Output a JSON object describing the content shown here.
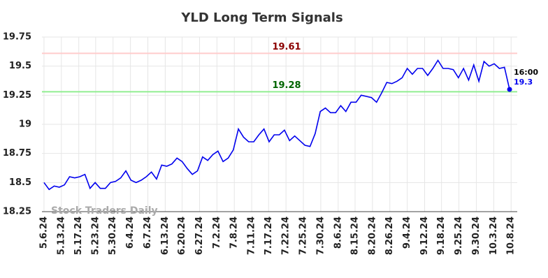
{
  "chart_data": {
    "type": "line",
    "title": "YLD Long Term Signals",
    "watermark": "Stock Traders Daily",
    "series": [
      {
        "name": "YLD",
        "color": "#0000ee",
        "values": [
          18.5,
          18.44,
          18.47,
          18.46,
          18.48,
          18.55,
          18.54,
          18.55,
          18.57,
          18.45,
          18.5,
          18.45,
          18.45,
          18.5,
          18.51,
          18.54,
          18.6,
          18.52,
          18.5,
          18.52,
          18.55,
          18.59,
          18.53,
          18.65,
          18.64,
          18.66,
          18.71,
          18.68,
          18.62,
          18.57,
          18.6,
          18.72,
          18.69,
          18.74,
          18.77,
          18.68,
          18.71,
          18.78,
          18.96,
          18.89,
          18.85,
          18.85,
          18.91,
          18.96,
          18.85,
          18.91,
          18.91,
          18.95,
          18.86,
          18.9,
          18.86,
          18.82,
          18.81,
          18.92,
          19.11,
          19.14,
          19.1,
          19.1,
          19.16,
          19.11,
          19.19,
          19.19,
          19.25,
          19.24,
          19.23,
          19.19,
          19.27,
          19.36,
          19.35,
          19.37,
          19.4,
          19.48,
          19.43,
          19.48,
          19.48,
          19.42,
          19.48,
          19.55,
          19.48,
          19.48,
          19.47,
          19.4,
          19.48,
          19.38,
          19.51,
          19.37,
          19.54,
          19.5,
          19.52,
          19.48,
          19.49,
          19.3
        ]
      }
    ],
    "xlim": [
      -0.4,
      92.5
    ],
    "xticks": [
      {
        "value": 0,
        "label": "5.6.24"
      },
      {
        "value": 3.4,
        "label": "5.13.24"
      },
      {
        "value": 6.8,
        "label": "5.17.24"
      },
      {
        "value": 10.1,
        "label": "5.23.24"
      },
      {
        "value": 13.5,
        "label": "5.30.24"
      },
      {
        "value": 16.9,
        "label": "6.4.24"
      },
      {
        "value": 20.3,
        "label": "6.7.24"
      },
      {
        "value": 23.7,
        "label": "6.13.24"
      },
      {
        "value": 27,
        "label": "6.20.24"
      },
      {
        "value": 30.4,
        "label": "6.27.24"
      },
      {
        "value": 33.8,
        "label": "7.2.24"
      },
      {
        "value": 37.2,
        "label": "7.8.24"
      },
      {
        "value": 40.6,
        "label": "7.11.24"
      },
      {
        "value": 43.9,
        "label": "7.17.24"
      },
      {
        "value": 47.3,
        "label": "7.22.24"
      },
      {
        "value": 50.7,
        "label": "7.25.24"
      },
      {
        "value": 54.1,
        "label": "7.30.24"
      },
      {
        "value": 57.5,
        "label": "8.6.24"
      },
      {
        "value": 60.8,
        "label": "8.15.24"
      },
      {
        "value": 64.2,
        "label": "8.20.24"
      },
      {
        "value": 67.6,
        "label": "8.26.24"
      },
      {
        "value": 71,
        "label": "9.4.24"
      },
      {
        "value": 74.4,
        "label": "9.12.24"
      },
      {
        "value": 77.7,
        "label": "9.18.24"
      },
      {
        "value": 81.1,
        "label": "9.25.24"
      },
      {
        "value": 84.5,
        "label": "9.30.24"
      },
      {
        "value": 87.9,
        "label": "10.3.24"
      },
      {
        "value": 91.3,
        "label": "10.8.24"
      }
    ],
    "ylim": [
      18.25,
      19.75
    ],
    "yticks": [
      18.25,
      18.5,
      18.75,
      19,
      19.25,
      19.5,
      19.75
    ],
    "grid": true,
    "hlines": [
      {
        "value": 19.61,
        "color": "#ffcccc",
        "label_color": "#8b0000"
      },
      {
        "value": 19.28,
        "color": "#90ee90",
        "label_color": "#006400"
      }
    ],
    "last_label": {
      "time": "16:00",
      "value": 19.3
    }
  }
}
